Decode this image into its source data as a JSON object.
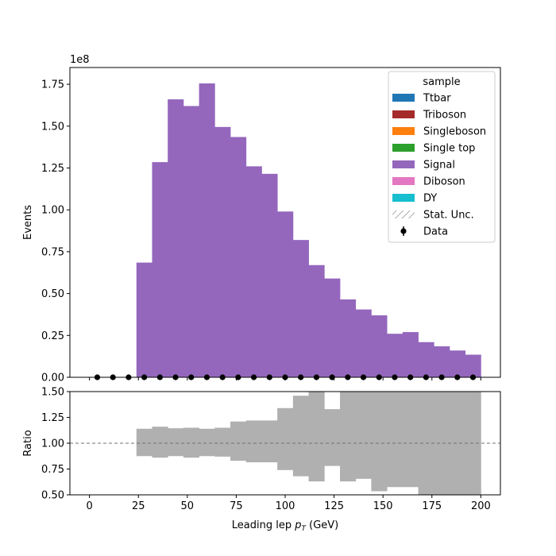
{
  "chart_data": [
    {
      "type": "bar",
      "panel": "main",
      "stacked": true,
      "ylabel": "Events",
      "y_offset_label": "1e8",
      "y_scale_factor": 100000000,
      "ylim": [
        0,
        1.85
      ],
      "xlim": [
        -10,
        210
      ],
      "bin_edges": [
        0,
        8,
        16,
        24,
        32,
        40,
        48,
        56,
        64,
        72,
        80,
        88,
        96,
        104,
        112,
        120,
        128,
        136,
        144,
        152,
        160,
        168,
        176,
        184,
        192,
        200
      ],
      "series": [
        {
          "name": "Ttbar",
          "color": "#1f77b4",
          "values": [
            0,
            0,
            0,
            0,
            0,
            0,
            0,
            0,
            0,
            0,
            0,
            0,
            0,
            0,
            0,
            0,
            0,
            0,
            0,
            0,
            0,
            0,
            0,
            0,
            0
          ]
        },
        {
          "name": "Triboson",
          "color": "#a52a2a",
          "values": [
            0,
            0,
            0,
            0,
            0,
            0,
            0,
            0,
            0,
            0,
            0,
            0,
            0,
            0,
            0,
            0,
            0,
            0,
            0,
            0,
            0,
            0,
            0,
            0,
            0
          ]
        },
        {
          "name": "Singleboson",
          "color": "#ff7f0e",
          "values": [
            0,
            0,
            0,
            0,
            0,
            0,
            0,
            0,
            0,
            0,
            0,
            0,
            0,
            0,
            0,
            0,
            0,
            0,
            0,
            0,
            0,
            0,
            0,
            0,
            0
          ]
        },
        {
          "name": "Single top",
          "color": "#2ca02c",
          "values": [
            0,
            0,
            0,
            0,
            0,
            0,
            0,
            0,
            0,
            0,
            0,
            0,
            0,
            0,
            0,
            0,
            0,
            0,
            0,
            0,
            0,
            0,
            0,
            0,
            0
          ]
        },
        {
          "name": "Signal",
          "color": "#9467bd",
          "values": [
            0,
            0,
            0,
            0.685,
            1.285,
            1.66,
            1.62,
            1.755,
            1.495,
            1.435,
            1.26,
            1.215,
            0.99,
            0.82,
            0.67,
            0.59,
            0.465,
            0.405,
            0.37,
            0.26,
            0.27,
            0.21,
            0.185,
            0.16,
            0.135
          ]
        },
        {
          "name": "Diboson",
          "color": "#e377c2",
          "values": [
            0,
            0,
            0,
            0,
            0,
            0,
            0,
            0,
            0,
            0,
            0,
            0,
            0,
            0,
            0,
            0,
            0,
            0,
            0,
            0,
            0,
            0,
            0,
            0,
            0
          ]
        },
        {
          "name": "DY",
          "color": "#17becf",
          "values": [
            0,
            0,
            0,
            0,
            0,
            0,
            0,
            0,
            0,
            0,
            0,
            0,
            0,
            0,
            0,
            0,
            0,
            0,
            0,
            0,
            0,
            0,
            0,
            0,
            0
          ]
        }
      ],
      "data_points": {
        "name": "Data",
        "x": [
          4,
          12,
          20,
          28,
          36,
          44,
          52,
          60,
          68,
          76,
          84,
          92,
          100,
          108,
          116,
          124,
          132,
          140,
          148,
          156,
          164,
          172,
          180,
          188,
          196
        ],
        "y": [
          0,
          0,
          0,
          0,
          0,
          0,
          0,
          0,
          0,
          0,
          0,
          0,
          0,
          0,
          0,
          0,
          0,
          0,
          0,
          0,
          0,
          0,
          0,
          0,
          0
        ]
      },
      "yticks": [
        0.0,
        0.25,
        0.5,
        0.75,
        1.0,
        1.25,
        1.5,
        1.75
      ],
      "ytick_labels": [
        "0.00",
        "0.25",
        "0.50",
        "0.75",
        "1.00",
        "1.25",
        "1.50",
        "1.75"
      ],
      "legend": {
        "title": "sample",
        "placement": "upper right",
        "entries": [
          {
            "label": "Ttbar",
            "marker": "patch",
            "color": "#1f77b4"
          },
          {
            "label": "Triboson",
            "marker": "patch",
            "color": "#a52a2a"
          },
          {
            "label": "Singleboson",
            "marker": "patch",
            "color": "#ff7f0e"
          },
          {
            "label": "Single top",
            "marker": "patch",
            "color": "#2ca02c"
          },
          {
            "label": "Signal",
            "marker": "patch",
            "color": "#9467bd"
          },
          {
            "label": "Diboson",
            "marker": "patch",
            "color": "#e377c2"
          },
          {
            "label": "DY",
            "marker": "patch",
            "color": "#17becf"
          },
          {
            "label": "Stat. Unc.",
            "marker": "hatch",
            "color": "#808080"
          },
          {
            "label": "Data",
            "marker": "errorbar",
            "color": "#000000"
          }
        ]
      }
    },
    {
      "type": "bar",
      "panel": "ratio",
      "xlabel_parts": [
        "Leading lep ",
        "p",
        "T",
        " (GeV)"
      ],
      "ylabel": "Ratio",
      "ylim": [
        0.5,
        1.5
      ],
      "xlim": [
        -10,
        210
      ],
      "reference_line": 1.0,
      "uncertainty_band": {
        "color": "#b0b0b0",
        "bin_edges": [
          0,
          8,
          16,
          24,
          32,
          40,
          48,
          56,
          64,
          72,
          80,
          88,
          96,
          104,
          112,
          120,
          128,
          136,
          144,
          152,
          160,
          168,
          176,
          184,
          192,
          200
        ],
        "low": [
          null,
          null,
          null,
          0.875,
          0.86,
          0.875,
          0.86,
          0.875,
          0.87,
          0.83,
          0.815,
          0.815,
          0.74,
          0.68,
          0.63,
          0.78,
          0.63,
          0.655,
          0.535,
          0.575,
          0.575,
          0.5,
          0.5,
          0.5,
          0.5
        ],
        "high": [
          null,
          null,
          null,
          1.14,
          1.16,
          1.145,
          1.15,
          1.14,
          1.15,
          1.21,
          1.22,
          1.22,
          1.34,
          1.46,
          1.5,
          1.33,
          1.5,
          1.5,
          1.5,
          1.5,
          1.5,
          1.5,
          1.5,
          1.5,
          1.5
        ]
      },
      "yticks": [
        0.5,
        0.75,
        1.0,
        1.25,
        1.5
      ],
      "ytick_labels": [
        "0.50",
        "0.75",
        "1.00",
        "1.25",
        "1.50"
      ],
      "xticks": [
        0,
        25,
        50,
        75,
        100,
        125,
        150,
        175,
        200
      ],
      "xtick_labels": [
        "0",
        "25",
        "50",
        "75",
        "100",
        "125",
        "150",
        "175",
        "200"
      ]
    }
  ]
}
